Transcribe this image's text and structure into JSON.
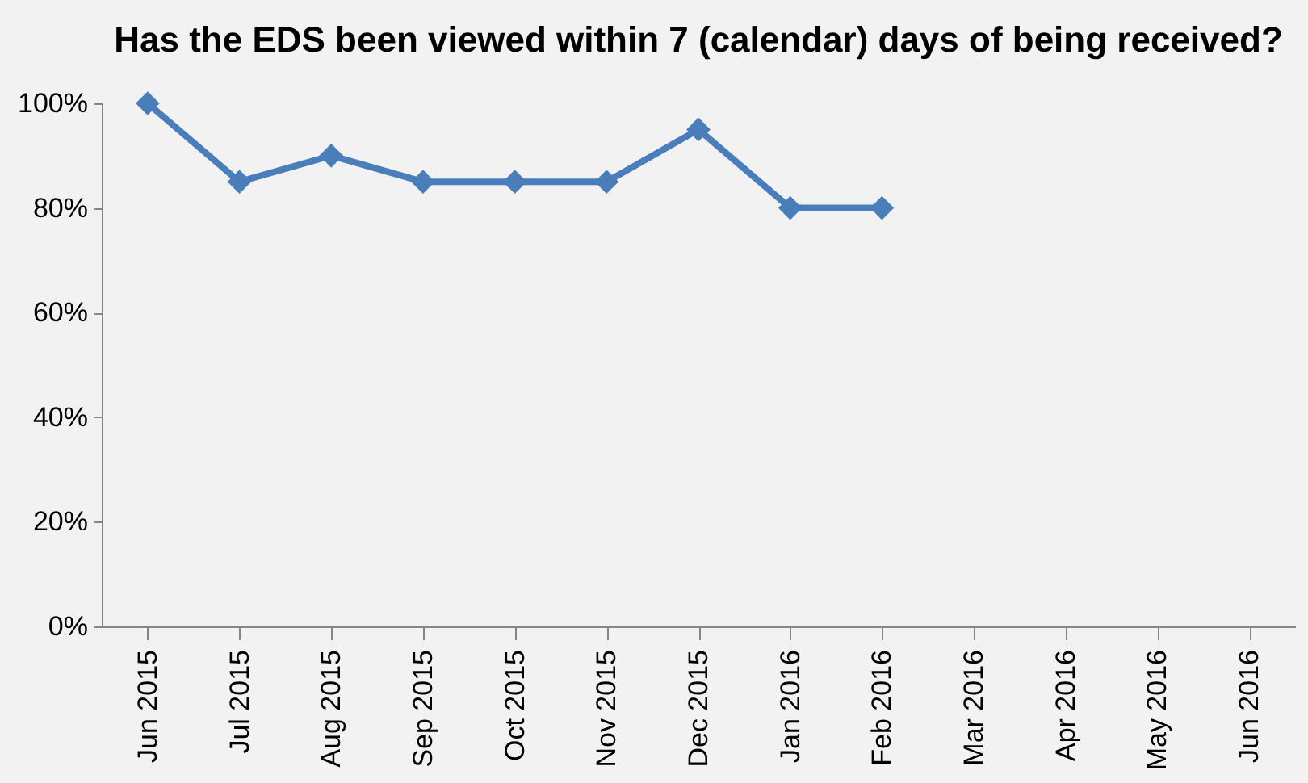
{
  "chart_data": {
    "type": "line",
    "title": "Has the EDS been viewed  within 7 (calendar)\ndays of being received?",
    "categories": [
      "Jun 2015",
      "Jul 2015",
      "Aug 2015",
      "Sep 2015",
      "Oct 2015",
      "Nov 2015",
      "Dec 2015",
      "Jan 2016",
      "Feb 2016",
      "Mar 2016",
      "Apr 2016",
      "May 2016",
      "Jun 2016"
    ],
    "series": [
      {
        "color": "#4a7ebb",
        "values": [
          100,
          85,
          90,
          85,
          85,
          85,
          95,
          80,
          80,
          null,
          null,
          null,
          null
        ]
      }
    ],
    "ylim": [
      0,
      100
    ],
    "yticks": [
      {
        "value": 0,
        "label": "0%"
      },
      {
        "value": 20,
        "label": "20%"
      },
      {
        "value": 40,
        "label": "40%"
      },
      {
        "value": 60,
        "label": "60%"
      },
      {
        "value": 80,
        "label": "80%"
      },
      {
        "value": 100,
        "label": "100%"
      }
    ],
    "grid": false,
    "legend": false,
    "marker": "diamond",
    "line_style": "solid"
  }
}
